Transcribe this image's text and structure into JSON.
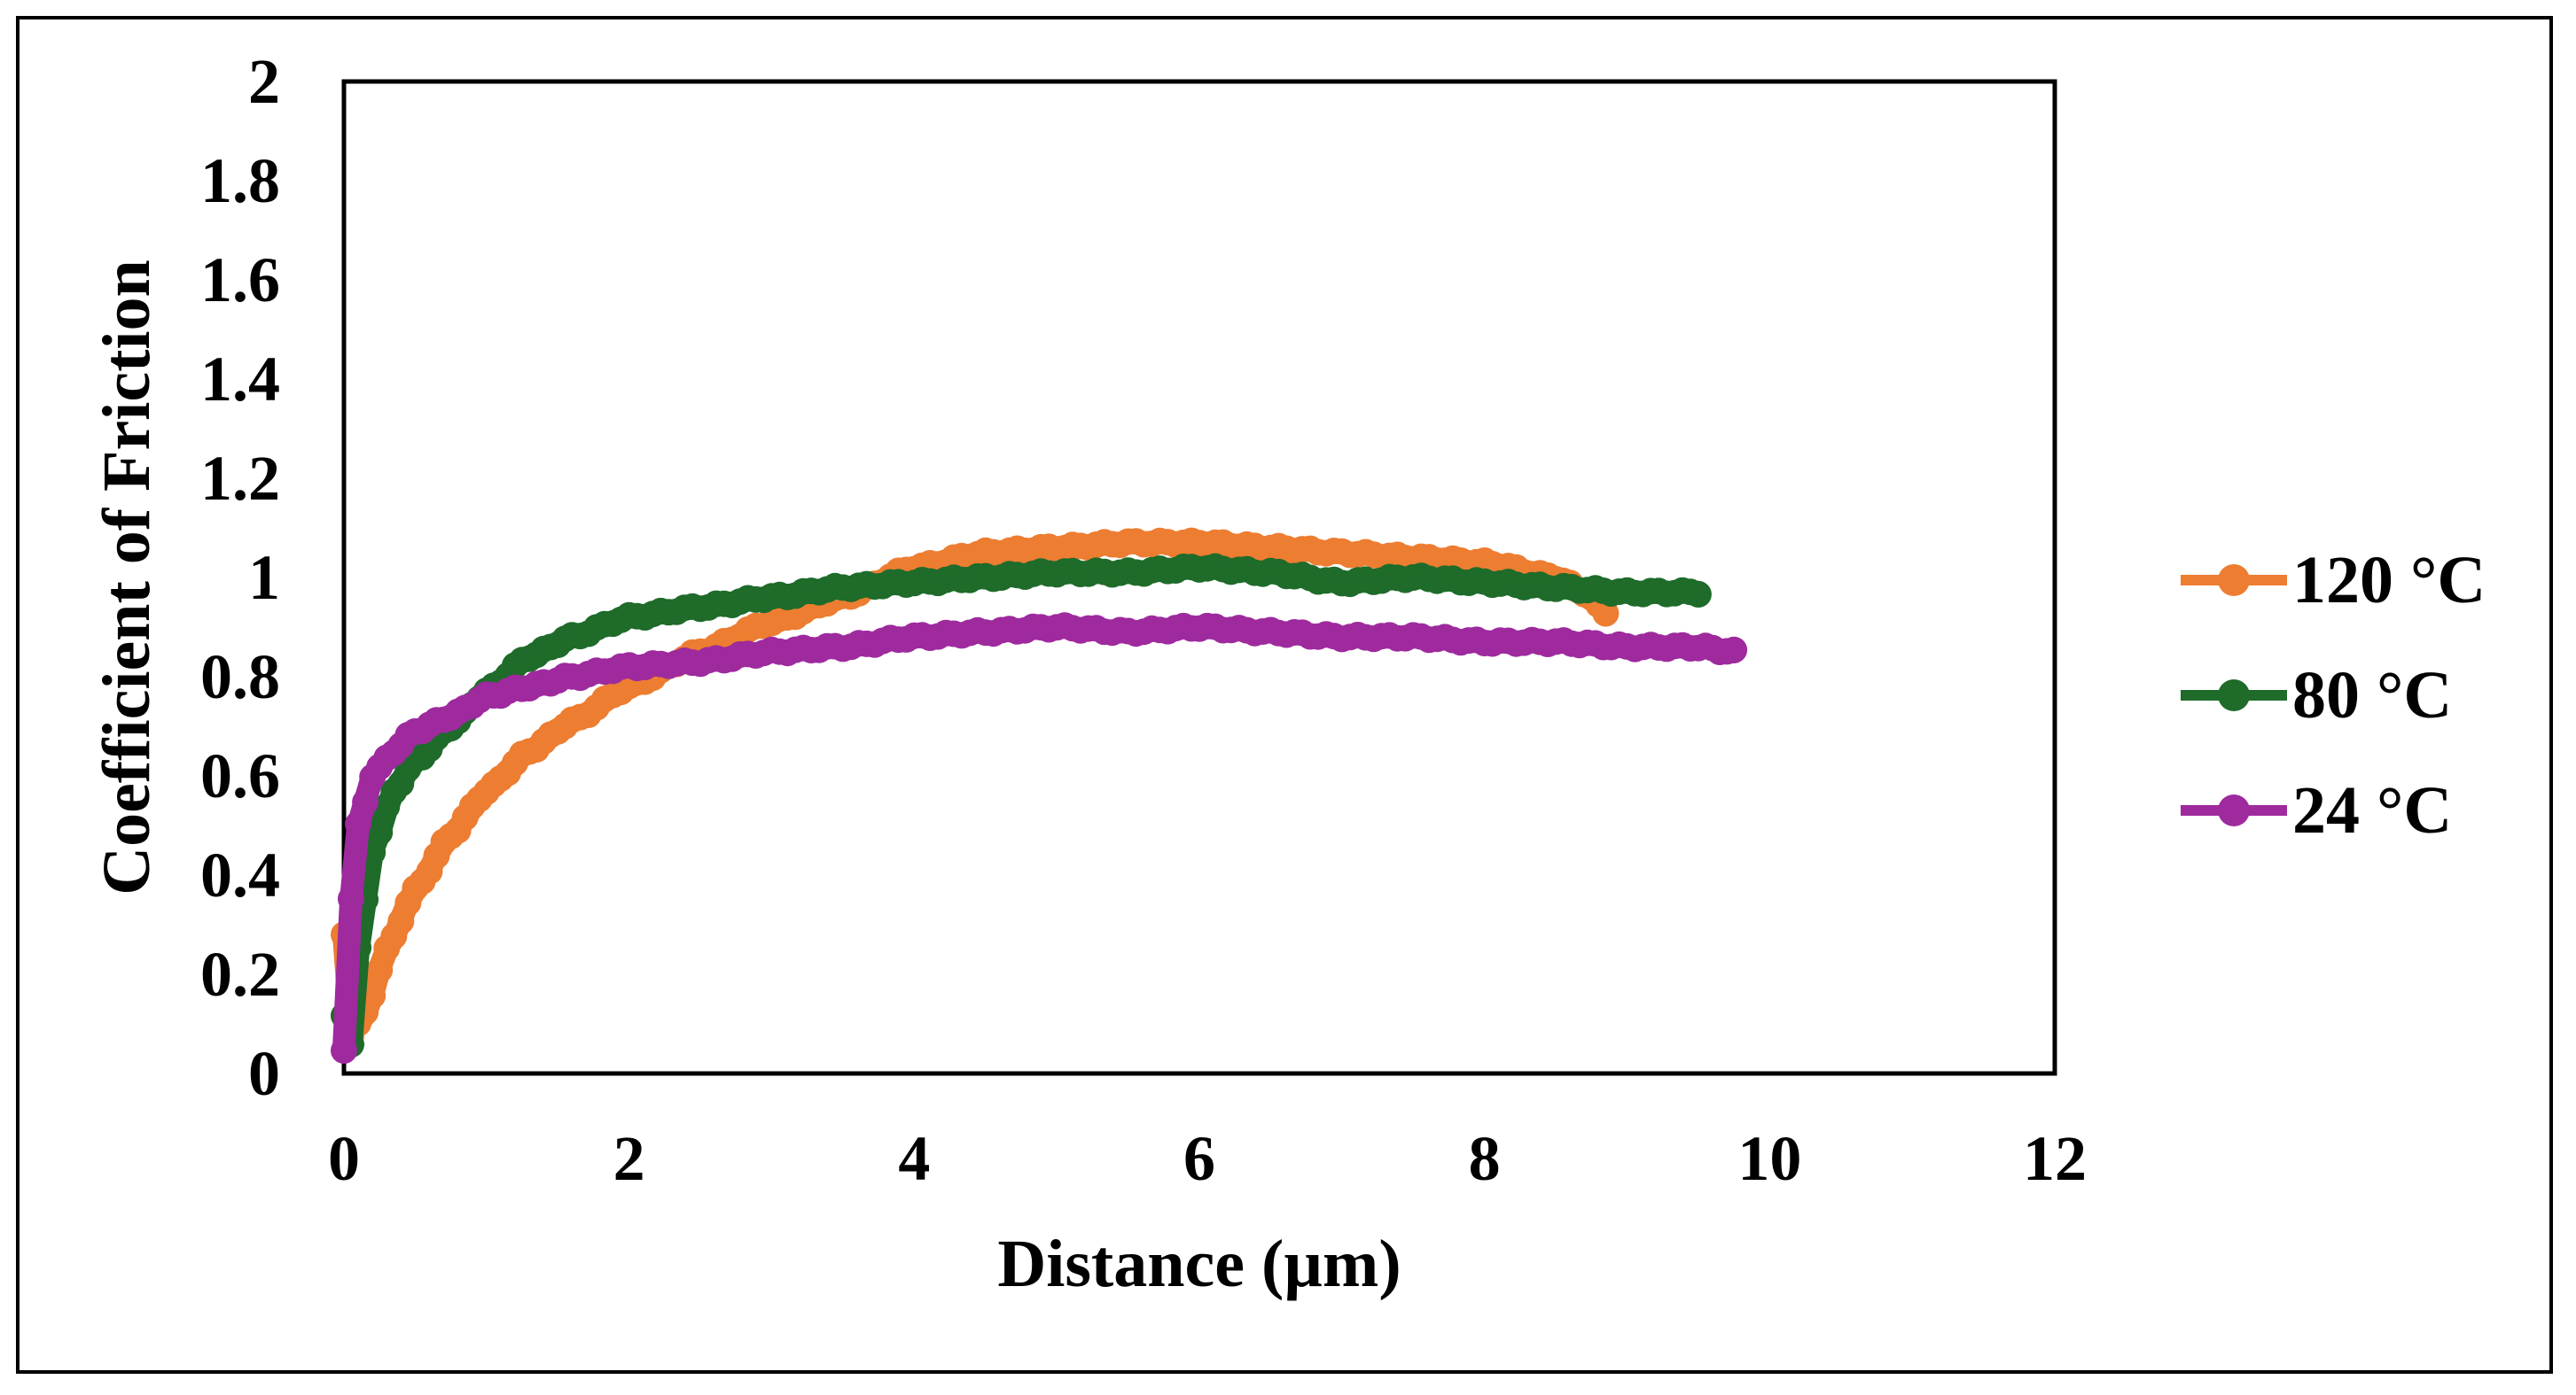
{
  "chart_data": {
    "type": "line",
    "title": "",
    "xlabel": "Distance (µm)",
    "ylabel": "Coefficient of  Friction",
    "xlim": [
      0,
      12
    ],
    "ylim": [
      0,
      2
    ],
    "xticks": [
      "0",
      "2",
      "4",
      "6",
      "8",
      "10",
      "12"
    ],
    "yticks": [
      "0",
      "0.2",
      "0.4",
      "0.6",
      "0.8",
      "1",
      "1.2",
      "1.4",
      "1.6",
      "1.8",
      "2"
    ],
    "grid": false,
    "legend_position": "right",
    "series": [
      {
        "name": "120 °C",
        "color": "#ED7D31",
        "x": [
          0,
          0.05,
          0.15,
          0.3,
          0.5,
          0.75,
          1.0,
          1.3,
          1.6,
          2.0,
          2.5,
          3.0,
          3.5,
          4.0,
          4.5,
          5.0,
          5.5,
          6.0,
          6.5,
          7.0,
          7.5,
          8.0,
          8.5,
          8.7,
          8.85
        ],
        "y": [
          0.28,
          0.08,
          0.12,
          0.25,
          0.37,
          0.48,
          0.57,
          0.65,
          0.71,
          0.78,
          0.85,
          0.91,
          0.96,
          1.02,
          1.05,
          1.06,
          1.07,
          1.07,
          1.06,
          1.05,
          1.04,
          1.03,
          1.0,
          0.97,
          0.93
        ]
      },
      {
        "name": "80 °C",
        "color": "#1E6B2A",
        "x": [
          0,
          0.05,
          0.1,
          0.2,
          0.35,
          0.5,
          0.75,
          1.0,
          1.3,
          1.6,
          2.0,
          2.5,
          3.0,
          3.5,
          4.0,
          4.5,
          5.0,
          5.5,
          6.0,
          6.5,
          7.0,
          7.5,
          8.0,
          8.5,
          9.0,
          9.5
        ],
        "y": [
          0.12,
          0.06,
          0.25,
          0.45,
          0.57,
          0.63,
          0.7,
          0.77,
          0.84,
          0.88,
          0.92,
          0.94,
          0.96,
          0.98,
          0.99,
          1.0,
          1.01,
          1.01,
          1.02,
          1.01,
          0.99,
          1.0,
          0.99,
          0.98,
          0.97,
          0.97
        ]
      },
      {
        "name": "24 °C",
        "color": "#9E2A9E",
        "x": [
          0,
          0.05,
          0.1,
          0.2,
          0.35,
          0.5,
          0.75,
          1.0,
          1.3,
          1.6,
          2.0,
          2.5,
          3.0,
          3.5,
          4.0,
          4.5,
          5.0,
          5.5,
          6.0,
          6.5,
          7.0,
          7.5,
          8.0,
          8.5,
          9.0,
          9.5,
          9.75
        ],
        "y": [
          0.05,
          0.35,
          0.5,
          0.6,
          0.65,
          0.69,
          0.72,
          0.76,
          0.78,
          0.8,
          0.82,
          0.83,
          0.85,
          0.86,
          0.88,
          0.89,
          0.9,
          0.89,
          0.9,
          0.89,
          0.88,
          0.88,
          0.87,
          0.87,
          0.86,
          0.86,
          0.85
        ]
      }
    ]
  }
}
